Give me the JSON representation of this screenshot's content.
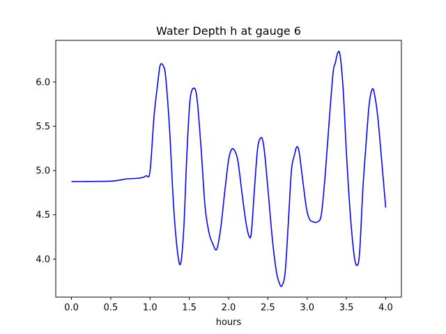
{
  "chart_data": {
    "type": "line",
    "title": "Water Depth h at gauge 6",
    "xlabel": "hours",
    "ylabel": "",
    "xlim": [
      -0.2,
      4.2
    ],
    "ylim": [
      3.57,
      6.47
    ],
    "grid": false,
    "xticks": [
      "0.0",
      "0.5",
      "1.0",
      "1.5",
      "2.0",
      "2.5",
      "3.0",
      "3.5",
      "4.0"
    ],
    "yticks": [
      "4.0",
      "4.5",
      "5.0",
      "5.5",
      "6.0"
    ],
    "series": [
      {
        "color": "#0000ff",
        "x": [
          0.0,
          0.2,
          0.4,
          0.5,
          0.6,
          0.7,
          0.8,
          0.9,
          0.95,
          1.0,
          1.05,
          1.1,
          1.13,
          1.17,
          1.2,
          1.25,
          1.3,
          1.35,
          1.39,
          1.43,
          1.47,
          1.51,
          1.56,
          1.6,
          1.65,
          1.7,
          1.75,
          1.8,
          1.85,
          1.9,
          1.95,
          2.0,
          2.04,
          2.08,
          2.12,
          2.17,
          2.22,
          2.26,
          2.29,
          2.33,
          2.37,
          2.41,
          2.44,
          2.47,
          2.51,
          2.56,
          2.61,
          2.65,
          2.68,
          2.72,
          2.76,
          2.8,
          2.84,
          2.87,
          2.9,
          2.94,
          2.99,
          3.03,
          3.08,
          3.13,
          3.18,
          3.23,
          3.28,
          3.33,
          3.36,
          3.39,
          3.42,
          3.46,
          3.5,
          3.55,
          3.6,
          3.64,
          3.67,
          3.71,
          3.75,
          3.79,
          3.83,
          3.86,
          3.9,
          3.95,
          4.0
        ],
        "y": [
          4.875,
          4.876,
          4.878,
          4.88,
          4.89,
          4.905,
          4.91,
          4.92,
          4.94,
          4.99,
          5.6,
          6.0,
          6.19,
          6.18,
          6.05,
          5.45,
          4.6,
          4.08,
          3.95,
          4.35,
          5.2,
          5.8,
          5.93,
          5.8,
          5.25,
          4.6,
          4.3,
          4.17,
          4.11,
          4.35,
          4.75,
          5.12,
          5.24,
          5.22,
          5.1,
          4.75,
          4.42,
          4.26,
          4.3,
          4.8,
          5.25,
          5.37,
          5.32,
          5.1,
          4.7,
          4.2,
          3.85,
          3.72,
          3.7,
          3.85,
          4.4,
          5.0,
          5.18,
          5.27,
          5.2,
          4.92,
          4.58,
          4.45,
          4.42,
          4.42,
          4.5,
          4.95,
          5.55,
          6.1,
          6.22,
          6.33,
          6.3,
          5.9,
          5.2,
          4.5,
          4.03,
          3.93,
          4.1,
          4.8,
          5.3,
          5.75,
          5.92,
          5.85,
          5.6,
          5.1,
          4.58
        ]
      }
    ]
  }
}
